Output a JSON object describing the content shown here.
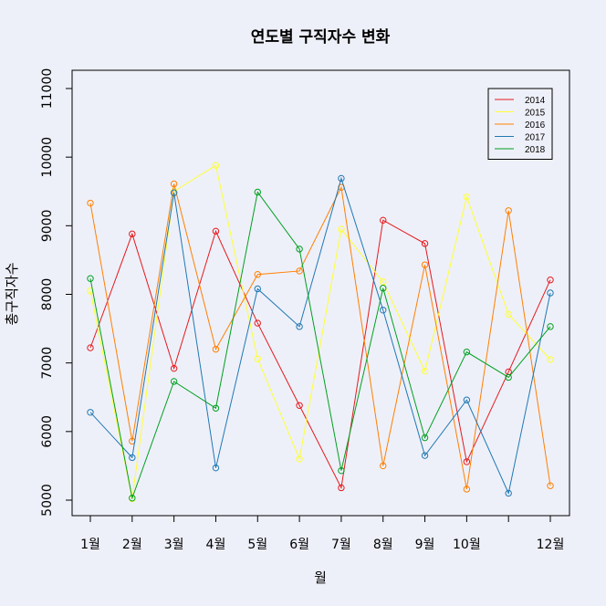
{
  "chart_data": {
    "type": "line",
    "title": "연도별 구직자수 변화",
    "xlabel": "월",
    "ylabel": "총구직자수",
    "x": [
      1,
      2,
      3,
      4,
      5,
      6,
      7,
      8,
      9,
      10,
      11,
      12
    ],
    "x_tick_labels": [
      {
        "x": 1,
        "label": "1월"
      },
      {
        "x": 2,
        "label": "2월"
      },
      {
        "x": 3,
        "label": "3월"
      },
      {
        "x": 4,
        "label": "4월"
      },
      {
        "x": 5,
        "label": "5월"
      },
      {
        "x": 6,
        "label": "6월"
      },
      {
        "x": 7,
        "label": "7월"
      },
      {
        "x": 8,
        "label": "8월"
      },
      {
        "x": 9,
        "label": "9월"
      },
      {
        "x": 10,
        "label": "10월"
      },
      {
        "x": 12,
        "label": "12월"
      }
    ],
    "y_ticks": [
      5000,
      6000,
      7000,
      8000,
      9000,
      10000,
      11000
    ],
    "ylim": [
      5000,
      11000
    ],
    "xlim": [
      1,
      12
    ],
    "grid": false,
    "legend": "top-right",
    "series": [
      {
        "name": "2014",
        "color": "#e41a1c",
        "values": [
          7220,
          8880,
          6920,
          8920,
          7580,
          6380,
          5180,
          9080,
          8740,
          5560,
          6870,
          8210
        ]
      },
      {
        "name": "2015",
        "color": "#ffff33",
        "values": [
          8050,
          5020,
          9500,
          9880,
          7060,
          5600,
          8950,
          8180,
          6880,
          9420,
          7710,
          7050
        ]
      },
      {
        "name": "2016",
        "color": "#ff7f00",
        "values": [
          9330,
          5860,
          9610,
          7200,
          8290,
          8340,
          9560,
          5500,
          8430,
          5160,
          9220,
          5210
        ]
      },
      {
        "name": "2017",
        "color": "#1f78b4",
        "values": [
          6280,
          5620,
          9480,
          5470,
          8080,
          7530,
          9690,
          7770,
          5650,
          6460,
          5100,
          8020
        ]
      },
      {
        "name": "2018",
        "color": "#00a020",
        "values": [
          8230,
          5030,
          6730,
          6340,
          9490,
          8660,
          5430,
          8090,
          5910,
          7160,
          6790,
          7530
        ]
      }
    ]
  }
}
